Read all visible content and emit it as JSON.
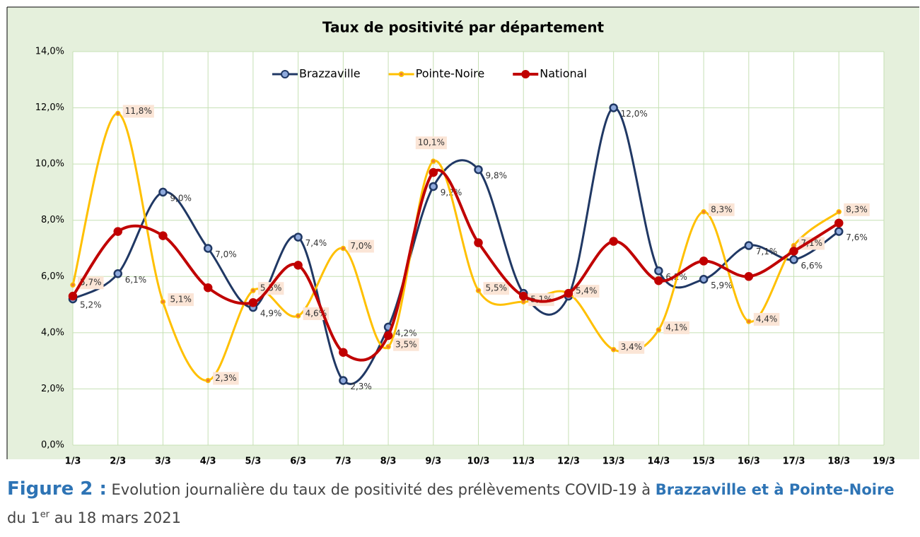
{
  "chart_data": {
    "type": "line",
    "title": "Taux de positivité par département",
    "categories": [
      "1/3",
      "2/3",
      "3/3",
      "4/3",
      "5/3",
      "6/3",
      "7/3",
      "8/3",
      "9/3",
      "10/3",
      "11/3",
      "12/3",
      "13/3",
      "14/3",
      "15/3",
      "16/3",
      "17/3",
      "18/3",
      "19/3"
    ],
    "series": [
      {
        "name": "Brazzaville",
        "color": "#203864",
        "values": [
          5.2,
          6.1,
          9.0,
          7.0,
          4.9,
          7.4,
          2.3,
          4.2,
          9.2,
          9.8,
          5.4,
          5.3,
          12.0,
          6.2,
          5.9,
          7.1,
          6.6,
          7.6,
          null
        ],
        "value_labels": [
          "5,2%",
          "6,1%",
          "9,0%",
          "7,0%",
          "4,9%",
          "7,4%",
          "2,3%",
          "4,2%",
          "9,2%",
          "9,8%",
          "5,4%",
          null,
          "12,0%",
          "6,2%",
          "5,9%",
          "7,1%",
          "6,6%",
          "7,6%",
          null
        ]
      },
      {
        "name": "Pointe-Noire",
        "color": "#ffc000",
        "values": [
          5.7,
          11.8,
          5.1,
          2.3,
          5.5,
          4.6,
          7.0,
          3.5,
          10.1,
          5.5,
          5.1,
          5.4,
          3.4,
          4.1,
          8.3,
          4.4,
          7.1,
          8.3,
          null
        ],
        "value_labels": [
          "5,7%",
          "11,8%",
          "5,1%",
          "2,3%",
          "5,5%",
          "4,6%",
          "7,0%",
          "3,5%",
          "10,1%",
          "5,5%",
          "5,1%",
          "5,4%",
          "3,4%",
          "4,1%",
          "8,3%",
          "4,4%",
          "7,1%",
          "8,3%",
          null
        ]
      },
      {
        "name": "National",
        "color": "#c00000",
        "values": [
          5.3,
          7.6,
          7.45,
          5.6,
          5.07,
          6.4,
          3.3,
          3.9,
          9.7,
          7.2,
          5.3,
          5.4,
          7.25,
          5.85,
          6.55,
          6.0,
          6.9,
          7.9,
          null
        ]
      }
    ],
    "ylim": [
      0,
      14
    ],
    "yticks": [
      {
        "value": 0,
        "label": "0,0%"
      },
      {
        "value": 2,
        "label": "2,0%"
      },
      {
        "value": 4,
        "label": "4,0%"
      },
      {
        "value": 6,
        "label": "6,0%"
      },
      {
        "value": 8,
        "label": "8,0%"
      },
      {
        "value": 10,
        "label": "10,0%"
      },
      {
        "value": 12,
        "label": "12,0%"
      },
      {
        "value": 14,
        "label": "14,0%"
      }
    ],
    "grid": true,
    "legend": "top",
    "smooth": true
  },
  "caption": {
    "label": "Figure 2 :",
    "parts": [
      "Evolution journalière du taux de positivité des prélèvements COVID-19 à ",
      "Brazzaville et à Pointe-Noire",
      " du 1",
      "er",
      " au 18 mars 2021"
    ]
  }
}
